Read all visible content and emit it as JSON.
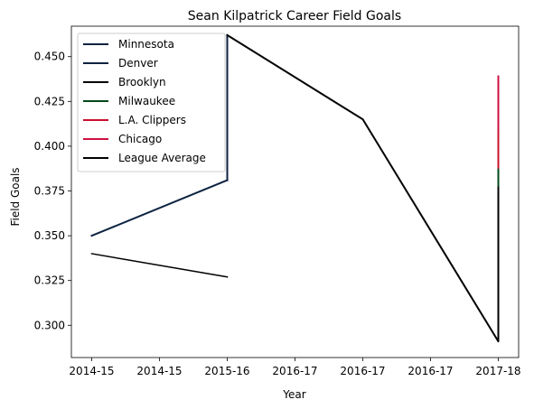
{
  "chart_data": {
    "type": "line",
    "title": "Sean Kilpatrick Career Field Goals",
    "xlabel": "Year",
    "ylabel": "Field Goals",
    "x_tick_labels": [
      "2014-15",
      "2014-15",
      "2015-16",
      "2016-17",
      "2016-17",
      "2016-17",
      "2017-18"
    ],
    "x_tick_positions": [
      0,
      0.5,
      1,
      1.5,
      2,
      2.5,
      3
    ],
    "y_ticks": [
      0.3,
      0.325,
      0.35,
      0.375,
      0.4,
      0.425,
      0.45
    ],
    "y_tick_labels": [
      "0.300",
      "0.325",
      "0.350",
      "0.375",
      "0.400",
      "0.425",
      "0.450"
    ],
    "xlim": [
      -0.15,
      3.15
    ],
    "ylim": [
      0.282,
      0.467
    ],
    "grid": false,
    "legend_position": "top-left",
    "series": [
      {
        "name": "Minnesota",
        "color": "#0C2340",
        "width": 2,
        "points": [
          [
            0,
            0.35
          ],
          [
            1,
            0.381
          ]
        ]
      },
      {
        "name": "Denver",
        "color": "#0E2240",
        "width": 2,
        "points": [
          [
            1,
            0.381
          ],
          [
            1,
            0.462
          ]
        ]
      },
      {
        "name": "Brooklyn",
        "color": "#000000",
        "width": 2,
        "points": [
          [
            1,
            0.462
          ],
          [
            2,
            0.415
          ],
          [
            3,
            0.291
          ],
          [
            3,
            0.378
          ]
        ]
      },
      {
        "name": "Milwaukee",
        "color": "#00471B",
        "width": 2,
        "points": [
          [
            3,
            0.378
          ],
          [
            3,
            0.388
          ]
        ]
      },
      {
        "name": "L.A. Clippers",
        "color": "#C8102E",
        "width": 2,
        "points": [
          [
            3,
            0.388
          ],
          [
            3,
            0.41
          ]
        ]
      },
      {
        "name": "Chicago",
        "color": "#CE1141",
        "width": 2,
        "points": [
          [
            3,
            0.41
          ],
          [
            3,
            0.439
          ]
        ]
      },
      {
        "name": "League Average",
        "color": "#000000",
        "width": 1.5,
        "points": [
          [
            0,
            0.34
          ],
          [
            1,
            0.327
          ]
        ]
      }
    ]
  }
}
